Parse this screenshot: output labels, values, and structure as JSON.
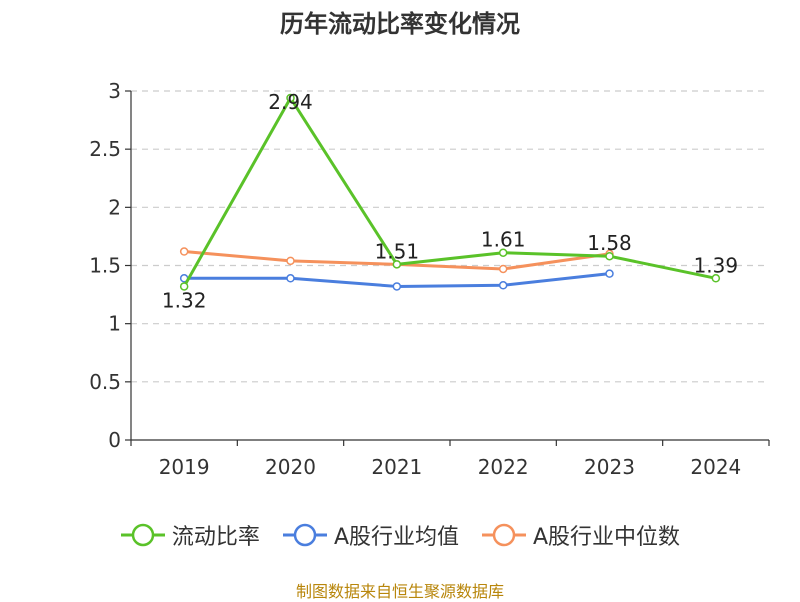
{
  "chart_data": {
    "type": "line",
    "title": "历年流动比率变化情况",
    "categories": [
      "2019",
      "2020",
      "2021",
      "2022",
      "2023",
      "2024"
    ],
    "ylim": [
      0,
      3
    ],
    "yticks": [
      "0",
      "0.5",
      "1",
      "1.5",
      "2",
      "2.5",
      "3"
    ],
    "grid": true,
    "legend_position": "bottom",
    "series": [
      {
        "name": "流动比率",
        "color": "#5ac229",
        "values": [
          1.32,
          2.94,
          1.51,
          1.61,
          1.58,
          1.39
        ],
        "labels": [
          "1.32",
          "2.94",
          "1.51",
          "1.61",
          "1.58",
          "1.39"
        ]
      },
      {
        "name": "A股行业均值",
        "color": "#4a7ede",
        "values": [
          1.39,
          1.39,
          1.32,
          1.33,
          1.43,
          null
        ]
      },
      {
        "name": "A股行业中位数",
        "color": "#f5915c",
        "values": [
          1.62,
          1.54,
          1.51,
          1.47,
          1.6,
          null
        ]
      }
    ],
    "source": "制图数据来自恒生聚源数据库"
  }
}
